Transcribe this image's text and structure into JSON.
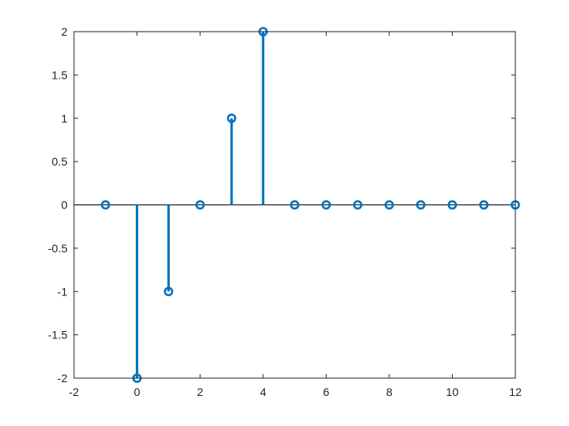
{
  "chart_data": {
    "type": "stem",
    "x": [
      -1,
      0,
      1,
      2,
      3,
      4,
      5,
      6,
      7,
      8,
      9,
      10,
      11,
      12
    ],
    "values": [
      0,
      -2,
      -1,
      0,
      1,
      2,
      0,
      0,
      0,
      0,
      0,
      0,
      0,
      0
    ],
    "xlim": [
      -2,
      12
    ],
    "ylim": [
      -2,
      2
    ],
    "xticks": [
      -2,
      0,
      2,
      4,
      6,
      8,
      10,
      12
    ],
    "yticks": [
      -2,
      -1.5,
      -1,
      -0.5,
      0,
      0.5,
      1,
      1.5,
      2
    ],
    "xtick_labels": [
      "-2",
      "0",
      "2",
      "4",
      "6",
      "8",
      "10",
      "12"
    ],
    "ytick_labels": [
      "-2",
      "-1.5",
      "-1",
      "-0.5",
      "0",
      "0.5",
      "1",
      "1.5",
      "2"
    ],
    "baseline": 0,
    "marker": "circle",
    "grid": false,
    "colors": {
      "series": "#0072BD",
      "axes": "#262626",
      "baseline": "#000000"
    }
  }
}
